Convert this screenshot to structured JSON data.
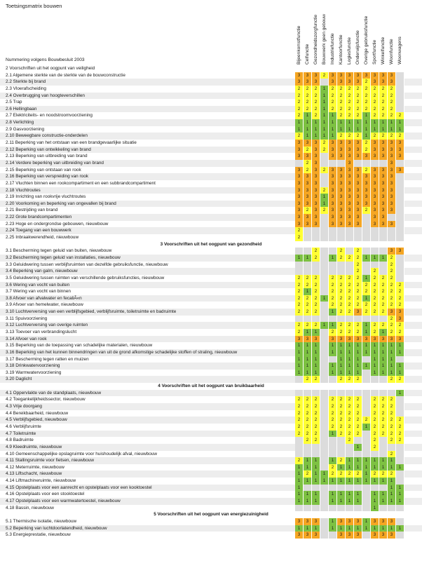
{
  "title": "Toetsingsmatrix bouwen",
  "subtitle": "Nummering volgens Bouwbesluit 2003",
  "colors": {
    "3": "#f5a623",
    "2": "#ffff33",
    "1": "#7dc142",
    "empty": "#dcdcdc"
  },
  "columns": [
    "Bijeenkomstfunctie",
    "Celfunctie",
    "Gezondheidszorgfunctie",
    "Bouwwerk geen gebouw",
    "Industriefunctie",
    "Kantoorfunctie",
    "Logiesfunctie",
    "Onderwijsfunctie",
    "Overige gebruiksfunctie",
    "Sportfunctie",
    "Winkelfunctie",
    "Woonfunctie",
    "Woonwagens"
  ],
  "rows": [
    {
      "label": "2 Voorschriften uit het oogpunt van veiligheid",
      "type": "plain",
      "values": []
    },
    {
      "label": "2.1 Algemene sterkte van de sterkte van de bouwconstructie",
      "values": [
        "3",
        "3",
        "3",
        "2",
        "3",
        "3",
        "3",
        "3",
        "3",
        "3",
        "3",
        "3",
        ""
      ]
    },
    {
      "label": "2.2 Sterkte bij brand",
      "values": [
        "3",
        "3",
        "3",
        "",
        "3",
        "3",
        "3",
        "3",
        "2",
        "3",
        "3",
        "3",
        ""
      ]
    },
    {
      "label": "2.3 Vloerafscheiding",
      "values": [
        "2",
        "2",
        "2",
        "1",
        "2",
        "2",
        "2",
        "2",
        "2",
        "2",
        "2",
        "2",
        ""
      ]
    },
    {
      "label": "2.4 Overbrugging van hoogteverschillen",
      "values": [
        "2",
        "2",
        "2",
        "1",
        "2",
        "2",
        "2",
        "2",
        "2",
        "2",
        "2",
        "2",
        ""
      ]
    },
    {
      "label": "2.5 Trap",
      "values": [
        "2",
        "2",
        "2",
        "1",
        "2",
        "2",
        "2",
        "2",
        "2",
        "2",
        "2",
        "2",
        ""
      ]
    },
    {
      "label": "2.6 Hellingbaan",
      "values": [
        "2",
        "2",
        "2",
        "1",
        "2",
        "2",
        "2",
        "2",
        "2",
        "2",
        "2",
        "2",
        ""
      ]
    },
    {
      "label": "2.7 Elektriciteits- en noodstroomvoorziening",
      "values": [
        "2",
        "1",
        "2",
        "1",
        "1",
        "2",
        "2",
        "2",
        "1",
        "2",
        "2",
        "2",
        "2"
      ]
    },
    {
      "label": "2.8 Verlichting",
      "values": [
        "1",
        "1",
        "1",
        "1",
        "1",
        "1",
        "1",
        "1",
        "1",
        "1",
        "1",
        "1",
        "1"
      ]
    },
    {
      "label": "2.9 Gasvoorziening",
      "values": [
        "1",
        "1",
        "1",
        "1",
        "1",
        "1",
        "1",
        "1",
        "1",
        "1",
        "1",
        "1",
        "1"
      ]
    },
    {
      "label": "2.10 Beweegbare constructie-onderdelen",
      "values": [
        "2",
        "1",
        "1",
        "1",
        "1",
        "2",
        "2",
        "2",
        "1",
        "2",
        "2",
        "2",
        "2"
      ]
    },
    {
      "label": "2.11 Beperking van het ontstaan van een brandgevaarlijke situatie",
      "values": [
        "3",
        "3",
        "3",
        "2",
        "3",
        "3",
        "3",
        "3",
        "2",
        "3",
        "3",
        "3",
        "3"
      ]
    },
    {
      "label": "2.12 Beperking van ontwikkeling van brand",
      "values": [
        "3",
        "2",
        "3",
        "2",
        "3",
        "3",
        "3",
        "3",
        "2",
        "3",
        "3",
        "3",
        "3"
      ]
    },
    {
      "label": "2.13 Beperking van uitbreiding van brand",
      "values": [
        "3",
        "3",
        "3",
        "",
        "3",
        "3",
        "3",
        "3",
        "3",
        "3",
        "3",
        "3",
        "3"
      ]
    },
    {
      "label": "2.14 Verdere beperking van uitbreiding van brand",
      "values": [
        "",
        "2",
        "3",
        "",
        "",
        "",
        "3",
        "",
        "",
        "",
        "",
        "3",
        ""
      ]
    },
    {
      "label": "2.15 Beperking van ontstaan van rook",
      "values": [
        "3",
        "2",
        "3",
        "2",
        "3",
        "3",
        "3",
        "3",
        "2",
        "3",
        "3",
        "3",
        "3"
      ]
    },
    {
      "label": "2.16 Beperking van verspreiding van rook",
      "values": [
        "3",
        "3",
        "3",
        "",
        "3",
        "3",
        "3",
        "3",
        "3",
        "3",
        "3",
        "3",
        ""
      ]
    },
    {
      "label": "2.17 Vluchten binnen een rookcompartiment en een subbrandcompartiment",
      "values": [
        "3",
        "3",
        "3",
        "",
        "3",
        "3",
        "3",
        "3",
        "3",
        "3",
        "3",
        "3",
        ""
      ]
    },
    {
      "label": "2.18 Vluchtroutes",
      "values": [
        "3",
        "3",
        "3",
        "2",
        "3",
        "3",
        "3",
        "3",
        "3",
        "3",
        "3",
        "3",
        ""
      ]
    },
    {
      "label": "2.19 Inrichting van rookvrije vluchtroutes",
      "values": [
        "3",
        "3",
        "3",
        "1",
        "3",
        "3",
        "3",
        "3",
        "3",
        "3",
        "3",
        "3",
        ""
      ]
    },
    {
      "label": "2.20 Voorkoming en beperking van ongevallen bij brand",
      "values": [
        "3",
        "3",
        "3",
        "1",
        "3",
        "3",
        "3",
        "3",
        "3",
        "3",
        "3",
        "3",
        ""
      ]
    },
    {
      "label": "2.21 Bestrijding van brand",
      "values": [
        "3",
        "2",
        "3",
        "2",
        "3",
        "3",
        "3",
        "3",
        "2",
        "3",
        "3",
        "3",
        ""
      ]
    },
    {
      "label": "2.22 Grote brandcompartimenten",
      "values": [
        "3",
        "3",
        "3",
        "",
        "3",
        "3",
        "3",
        "3",
        "",
        "3",
        "3",
        "",
        ""
      ]
    },
    {
      "label": "2.23 Hoge en ondergrondse gebouwen, nieuwbouw",
      "values": [
        "3",
        "3",
        "3",
        "",
        "3",
        "3",
        "3",
        "3",
        "",
        "3",
        "3",
        "3",
        ""
      ]
    },
    {
      "label": "2.24 Toegang van een bouwwerk",
      "values": [
        "2",
        "",
        "",
        "",
        "",
        "",
        "",
        "",
        "",
        "",
        "",
        "",
        ""
      ]
    },
    {
      "label": "2.25 Inbraakwerendheid, nieuwbouw",
      "values": [
        "2",
        "",
        "",
        "",
        "",
        "",
        "",
        "",
        "",
        "",
        "",
        "",
        ""
      ]
    },
    {
      "label": "3 Voorschriften uit het oogpunt van gezondheid",
      "type": "section",
      "values": []
    },
    {
      "label": "3.1 Bescherming tegen geluid van buiten, nieuwbouw",
      "values": [
        "",
        "",
        "2",
        "",
        "",
        "2",
        "",
        "2",
        "",
        "",
        "",
        "3",
        "3"
      ]
    },
    {
      "label": "3.2 Bescherming tegen geluid van installaties, nieuwbouw",
      "values": [
        "1",
        "1",
        "2",
        "",
        "1",
        "2",
        "2",
        "2",
        "1",
        "1",
        "1",
        "2",
        ""
      ]
    },
    {
      "label": "3.3 Geluidwering tussen verblijfsruimten van dezelfde gebruiksfunctie, nieuwbouw",
      "values": [
        "",
        "",
        "",
        "",
        "",
        "",
        "",
        "2",
        "",
        "",
        "",
        "2",
        ""
      ]
    },
    {
      "label": "3.4 Beperking van galm, nieuwbouw",
      "values": [
        "",
        "",
        "",
        "",
        "",
        "",
        "",
        "2",
        "",
        "2",
        "",
        "2",
        ""
      ]
    },
    {
      "label": "3.5 Geluidwering tussen ruimten van verschillende gebruiksfuncties, nieuwbouw",
      "values": [
        "2",
        "2",
        "2",
        "",
        "2",
        "2",
        "2",
        "2",
        "1",
        "2",
        "2",
        "2",
        ""
      ]
    },
    {
      "label": "3.6 Wering van vocht van buiten",
      "values": [
        "2",
        "2",
        "2",
        "",
        "2",
        "2",
        "2",
        "2",
        "2",
        "2",
        "2",
        "2",
        "2"
      ]
    },
    {
      "label": "3.7 Wering van vocht van binnen",
      "values": [
        "2",
        "1",
        "2",
        "",
        "2",
        "2",
        "2",
        "2",
        "2",
        "2",
        "2",
        "2",
        "2"
      ]
    },
    {
      "label": "3.8 Afvoer van afvalwater en fecaliÃ«n",
      "values": [
        "2",
        "2",
        "2",
        "1",
        "2",
        "2",
        "2",
        "2",
        "1",
        "2",
        "2",
        "2",
        "2"
      ]
    },
    {
      "label": "3.9 Afvoer van hemelwater, nieuwbouw",
      "values": [
        "2",
        "2",
        "2",
        "",
        "2",
        "2",
        "2",
        "2",
        "2",
        "2",
        "2",
        "2",
        "2"
      ]
    },
    {
      "label": "3.10 Luchtverversing van een verblijfsgebied, verblijfsruimte, toiletruimte en badruimte",
      "values": [
        "2",
        "2",
        "2",
        "",
        "1",
        "2",
        "2",
        "3",
        "2",
        "2",
        "2",
        "3",
        "3"
      ]
    },
    {
      "label": "3.11 Spuivoorziening",
      "values": [
        "",
        "",
        "",
        "",
        "",
        "",
        "",
        "",
        "",
        "",
        "",
        "2",
        "3"
      ]
    },
    {
      "label": "3.12 Luchtverversing van overige ruimten",
      "values": [
        "2",
        "2",
        "2",
        "1",
        "1",
        "2",
        "2",
        "2",
        "1",
        "2",
        "2",
        "2",
        "2"
      ]
    },
    {
      "label": "3.13 Toevoer van verbrandingslucht",
      "values": [
        "2",
        "1",
        "1",
        "",
        "2",
        "2",
        "2",
        "2",
        "1",
        "2",
        "1",
        "2",
        "2"
      ]
    },
    {
      "label": "3.14 Afvoer van rook",
      "values": [
        "3",
        "3",
        "3",
        "",
        "3",
        "3",
        "3",
        "3",
        "3",
        "3",
        "3",
        "3",
        "3"
      ]
    },
    {
      "label": "3.15 Beperking van de toepassing van schadelijke materialen, nieuwbouw",
      "values": [
        "1",
        "1",
        "1",
        "",
        "1",
        "1",
        "1",
        "1",
        "1",
        "1",
        "1",
        "1",
        "1"
      ]
    },
    {
      "label": "3.16 Beperking van het kunnen binnendringen van uit de grond afkomstige schadelijke stoffen of straling, nieuwbouw",
      "values": [
        "1",
        "1",
        "1",
        "",
        "1",
        "1",
        "1",
        "1",
        "1",
        "1",
        "1",
        "1",
        "1"
      ]
    },
    {
      "label": "3.17 Bescherming tegen ratten en muizen",
      "values": [
        "1",
        "1",
        "1",
        "",
        "",
        "1",
        "1",
        "1",
        "",
        "1",
        "1",
        "1",
        ""
      ]
    },
    {
      "label": "3.18 Drinkwatervoorziening",
      "values": [
        "1",
        "1",
        "1",
        "",
        "1",
        "1",
        "1",
        "1",
        "1",
        "1",
        "1",
        "1",
        "1"
      ]
    },
    {
      "label": "3.19 Warmwatervoorziening",
      "values": [
        "1",
        "1",
        "1",
        "",
        "1",
        "1",
        "1",
        "1",
        "",
        "1",
        "1",
        "1",
        "1"
      ]
    },
    {
      "label": "3.20 Daglicht",
      "values": [
        "",
        "2",
        "2",
        "",
        "",
        "2",
        "2",
        "2",
        "",
        "",
        "",
        "2",
        "2"
      ]
    },
    {
      "label": "4 Voorschriften uit het oogpunt van bruikbaarheid",
      "type": "section",
      "values": []
    },
    {
      "label": "4.1 Oppervlakte van de standplaats, nieuwbouw",
      "values": [
        "",
        "",
        "",
        "",
        "",
        "",
        "",
        "",
        "",
        "",
        "",
        "",
        "1"
      ]
    },
    {
      "label": "4.2 Toegankelijkheidssector, nieuwbouw",
      "values": [
        "2",
        "2",
        "2",
        "",
        "2",
        "2",
        "2",
        "2",
        "",
        "2",
        "2",
        "2",
        ""
      ]
    },
    {
      "label": "4.3 Vrije doorgang",
      "values": [
        "2",
        "2",
        "2",
        "",
        "2",
        "2",
        "2",
        "2",
        "",
        "2",
        "2",
        "2",
        ""
      ]
    },
    {
      "label": "4.4 Bereikbaarheid, nieuwbouw",
      "values": [
        "2",
        "2",
        "2",
        "",
        "2",
        "2",
        "2",
        "2",
        "",
        "2",
        "2",
        "2",
        ""
      ]
    },
    {
      "label": "4.5 Verblijfsgebied, nieuwbouw",
      "values": [
        "2",
        "2",
        "2",
        "",
        "2",
        "2",
        "2",
        "2",
        "2",
        "2",
        "2",
        "2",
        "2"
      ]
    },
    {
      "label": "4.6 Verblijfsruimte",
      "values": [
        "2",
        "2",
        "2",
        "",
        "2",
        "2",
        "2",
        "2",
        "1",
        "2",
        "2",
        "2",
        "2"
      ]
    },
    {
      "label": "4.7 Toiletruimte",
      "values": [
        "2",
        "2",
        "2",
        "",
        "1",
        "2",
        "2",
        "2",
        "",
        "2",
        "2",
        "2",
        "2"
      ]
    },
    {
      "label": "4.8 Badruimte",
      "values": [
        "",
        "2",
        "2",
        "",
        "",
        "",
        "2",
        "",
        "",
        "2",
        "",
        "2",
        "2"
      ]
    },
    {
      "label": "4.9 Kleedruimte, nieuwbouw",
      "values": [
        "",
        "",
        "",
        "",
        "",
        "",
        "",
        "1",
        "",
        "2",
        "",
        "",
        ""
      ]
    },
    {
      "label": "4.10 Gemeenschappelijke opslagruimte voor huishoudelijk afval, nieuwbouw",
      "values": [
        "",
        "",
        "",
        "",
        "",
        "",
        "",
        "",
        "",
        "",
        "",
        "2",
        ""
      ]
    },
    {
      "label": "4.11 Stallingsruimte voor fietsen, nieuwbouw",
      "values": [
        "2",
        "1",
        "1",
        "",
        "1",
        "2",
        "1",
        "1",
        "1",
        "1",
        "1",
        "1",
        ""
      ]
    },
    {
      "label": "4.12 Meterruimte, nieuwbouw",
      "values": [
        "1",
        "1",
        "1",
        "",
        "2",
        "1",
        "1",
        "1",
        "1",
        "1",
        "1",
        "1",
        "1"
      ]
    },
    {
      "label": "4.13 Liftschacht, nieuwbouw",
      "values": [
        "1",
        "2",
        "1",
        "1",
        "2",
        "2",
        "2",
        "2",
        "1",
        "2",
        "2",
        "2",
        ""
      ]
    },
    {
      "label": "4.14 Liftmachineruimte, nieuwbouw",
      "values": [
        "1",
        "1",
        "1",
        "1",
        "1",
        "1",
        "1",
        "1",
        "1",
        "1",
        "1",
        "1",
        ""
      ]
    },
    {
      "label": "4.15 Opstelplaats voor een aanrecht en opstelplaats voor een kooktoestel",
      "values": [
        "1",
        "",
        "",
        "",
        "",
        "",
        "",
        "",
        "",
        "",
        "",
        "1",
        "1"
      ]
    },
    {
      "label": "4.16 Opstelplaats voor een stooktoestel",
      "values": [
        "1",
        "1",
        "1",
        "",
        "1",
        "1",
        "1",
        "1",
        "",
        "1",
        "1",
        "1",
        "1"
      ]
    },
    {
      "label": "4.17 Opstelplaats voor een warmwatertoestel, nieuwbouw",
      "values": [
        "1",
        "1",
        "1",
        "",
        "1",
        "1",
        "1",
        "1",
        "",
        "1",
        "1",
        "1",
        "1"
      ]
    },
    {
      "label": "4.18 Bassin, nieuwbouw",
      "values": [
        "",
        "",
        "",
        "",
        "",
        "",
        "",
        "",
        "",
        "1",
        "",
        "",
        ""
      ]
    },
    {
      "label": "5 Voorschriften uit het oogpunt van energiezuinigheid",
      "type": "section",
      "values": []
    },
    {
      "label": "5.1 Thermische isolatie, nieuwbouw",
      "values": [
        "3",
        "3",
        "3",
        "",
        "1",
        "3",
        "3",
        "3",
        "1",
        "3",
        "3",
        "3",
        ""
      ]
    },
    {
      "label": "5.2 Beperking van luchtdoorlatendheid, nieuwbouw",
      "values": [
        "1",
        "1",
        "1",
        "",
        "1",
        "1",
        "1",
        "1",
        "1",
        "1",
        "1",
        "1",
        "1"
      ]
    },
    {
      "label": "5.3 Energieprestatie, nieuwbouw",
      "values": [
        "3",
        "3",
        "3",
        "",
        "",
        "3",
        "3",
        "3",
        "",
        "3",
        "3",
        "3",
        ""
      ]
    }
  ]
}
